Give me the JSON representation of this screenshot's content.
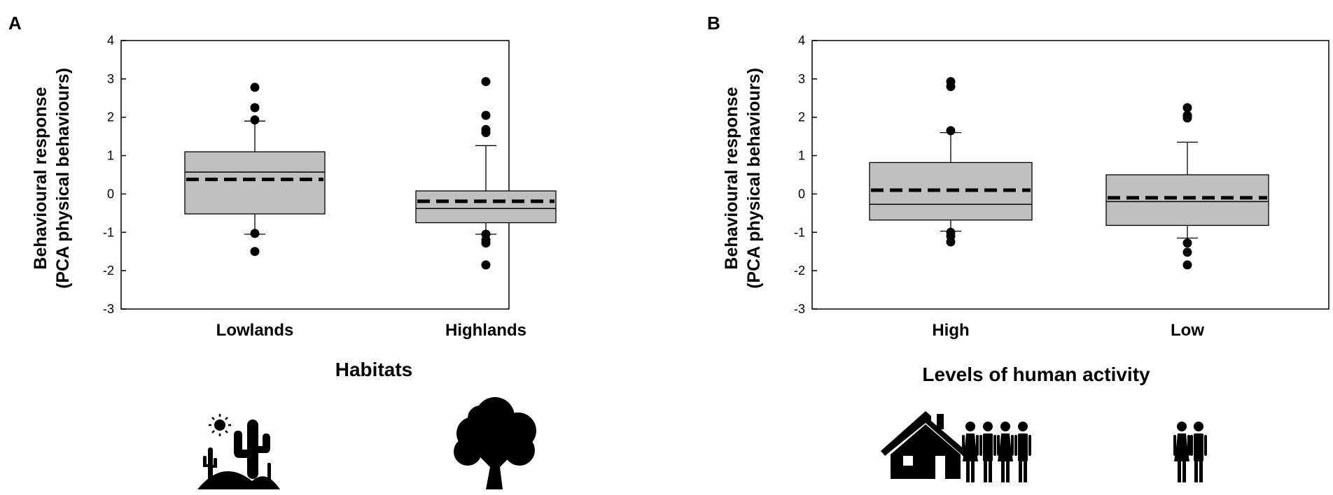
{
  "figure": {
    "background": "#ffffff",
    "box_fill": "#c0c0c0",
    "mark_color": "#000000"
  },
  "chart_data": [
    {
      "panel_label": "A",
      "type": "box",
      "ylabel": [
        "Behavioural response",
        "(PCA physical behaviours)"
      ],
      "xlabel": "Habitats",
      "ylim": [
        -3,
        4
      ],
      "yticks": [
        4,
        3,
        2,
        1,
        0,
        -1,
        -2,
        -3
      ],
      "grid": false,
      "categories": [
        "Lowlands",
        "Highlands"
      ],
      "icons": [
        "desert-cactus-icon",
        "tree-icon"
      ],
      "boxes": [
        {
          "q1": -0.52,
          "median": 0.57,
          "q3": 1.1,
          "mean": 0.38,
          "whisker_low": -1.05,
          "whisker_high": 1.9,
          "outliers": [
            2.78,
            2.25,
            1.93,
            -1.03,
            -1.5
          ]
        },
        {
          "q1": -0.75,
          "median": -0.38,
          "q3": 0.08,
          "mean": -0.19,
          "whisker_low": -1.05,
          "whisker_high": 1.26,
          "outliers": [
            2.93,
            2.05,
            1.68,
            1.6,
            -1.05,
            -1.2,
            -1.28,
            -1.85
          ]
        }
      ]
    },
    {
      "panel_label": "B",
      "type": "box",
      "ylabel": [
        "Behavioural response",
        "(PCA physical behaviours)"
      ],
      "xlabel": "Levels of human activity",
      "ylim": [
        -3,
        4
      ],
      "yticks": [
        4,
        3,
        2,
        1,
        0,
        -1,
        -2,
        -3
      ],
      "grid": false,
      "categories": [
        "High",
        "Low"
      ],
      "icons": [
        "house-crowd-icon",
        "couple-icon"
      ],
      "boxes": [
        {
          "q1": -0.68,
          "median": -0.27,
          "q3": 0.82,
          "mean": 0.1,
          "whisker_low": -0.97,
          "whisker_high": 1.6,
          "outliers": [
            2.93,
            2.8,
            1.65,
            -1.0,
            -1.1,
            -1.25
          ]
        },
        {
          "q1": -0.82,
          "median": -0.2,
          "q3": 0.5,
          "mean": -0.1,
          "whisker_low": -1.15,
          "whisker_high": 1.35,
          "outliers": [
            2.25,
            2.05,
            1.98,
            -1.28,
            -1.52,
            -1.85
          ]
        }
      ]
    }
  ]
}
